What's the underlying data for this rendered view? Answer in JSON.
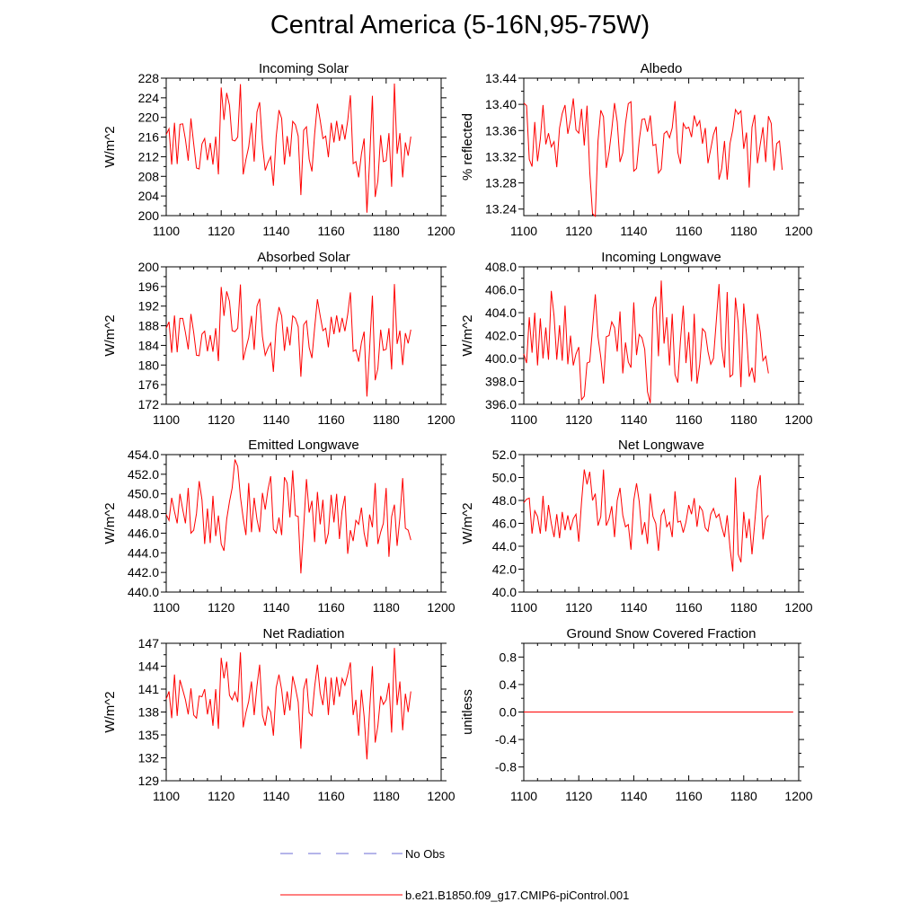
{
  "title": "Central America (5-16N,95-75W)",
  "legend": {
    "no_obs_label": "No Obs",
    "model_label": "b.e21.B1850.f09_g17.CMIP6-piControl.001",
    "no_obs_color": "#6b6bd6",
    "model_color": "#ff0000"
  },
  "chart_data": [
    {
      "type": "line",
      "title": "Incoming Solar",
      "ylabel": "W/m^2",
      "xlim": [
        1100,
        1200
      ],
      "ylim": [
        200,
        228
      ],
      "xticks": [
        1100,
        1120,
        1140,
        1160,
        1180,
        1200
      ],
      "yticks": [
        200,
        204,
        208,
        212,
        216,
        220,
        224,
        228
      ],
      "ydecimals": 0,
      "x_start": 1100,
      "values": [
        216.5,
        217.7,
        210.4,
        218.9,
        210.5,
        218.6,
        218.7,
        215.5,
        211.2,
        219.8,
        214.6,
        209.7,
        209.5,
        214.6,
        215.7,
        211.3,
        214.8,
        210.4,
        216.1,
        208.4,
        226.1,
        219.5,
        225.0,
        222.5,
        215.4,
        215.2,
        216.0,
        226.8,
        208.4,
        211.4,
        214.0,
        218.9,
        211.0,
        221.1,
        223.1,
        214.5,
        209.2,
        210.8,
        212.0,
        206.1,
        216.1,
        221.5,
        219.8,
        210.4,
        216.2,
        212.0,
        219.2,
        218.5,
        216.2,
        204.2,
        217.4,
        218.1,
        211.5,
        209.0,
        216.6,
        222.8,
        219.4,
        215.7,
        216.2,
        211.9,
        218.9,
        214.9,
        219.3,
        215.2,
        218.6,
        215.5,
        219.3,
        224.5,
        210.6,
        211.0,
        207.8,
        212.6,
        215.7,
        200.6,
        211.2,
        224.4,
        203.8,
        207.1,
        216.4,
        211.0,
        211.2,
        216.8,
        205.9,
        226.9,
        212.6,
        216.8,
        207.8,
        214.9,
        212.2,
        216.1
      ]
    },
    {
      "type": "line",
      "title": "Albedo",
      "ylabel": "% reflected",
      "xlim": [
        1100,
        1200
      ],
      "ylim": [
        13.23,
        13.44
      ],
      "xticks": [
        1100,
        1120,
        1140,
        1160,
        1180,
        1200
      ],
      "yticks": [
        13.24,
        13.28,
        13.32,
        13.36,
        13.4,
        13.44
      ],
      "ydecimals": 2,
      "x_start": 1100,
      "values": [
        13.402,
        13.398,
        13.316,
        13.305,
        13.373,
        13.313,
        13.347,
        13.399,
        13.339,
        13.356,
        13.335,
        13.343,
        13.304,
        13.364,
        13.386,
        13.399,
        13.355,
        13.376,
        13.409,
        13.361,
        13.356,
        13.393,
        13.337,
        13.398,
        13.297,
        13.233,
        13.229,
        13.344,
        13.391,
        13.381,
        13.303,
        13.327,
        13.361,
        13.402,
        13.373,
        13.312,
        13.326,
        13.371,
        13.401,
        13.404,
        13.298,
        13.302,
        13.345,
        13.377,
        13.378,
        13.358,
        13.383,
        13.337,
        13.339,
        13.295,
        13.301,
        13.355,
        13.359,
        13.349,
        13.364,
        13.405,
        13.327,
        13.309,
        13.371,
        13.363,
        13.365,
        13.35,
        13.383,
        13.367,
        13.375,
        13.34,
        13.364,
        13.31,
        13.332,
        13.354,
        13.366,
        13.285,
        13.302,
        13.344,
        13.285,
        13.34,
        13.361,
        13.392,
        13.385,
        13.39,
        13.332,
        13.357,
        13.273,
        13.365,
        13.384,
        13.31,
        13.339,
        13.365,
        13.312,
        13.382,
        13.371,
        13.299,
        13.34,
        13.344,
        13.3
      ]
    },
    {
      "type": "line",
      "title": "Absorbed Solar",
      "ylabel": "W/m^2",
      "xlim": [
        1100,
        1200
      ],
      "ylim": [
        172,
        200
      ],
      "xticks": [
        1100,
        1120,
        1140,
        1160,
        1180,
        1200
      ],
      "yticks": [
        172,
        176,
        180,
        184,
        188,
        192,
        196,
        200
      ],
      "ydecimals": 0,
      "x_start": 1100,
      "values": [
        187.5,
        188.8,
        182.5,
        190.1,
        182.6,
        189.5,
        189.5,
        186.6,
        183.2,
        190.4,
        186.6,
        182.0,
        181.9,
        186.3,
        186.9,
        182.8,
        186.1,
        182.7,
        187.5,
        180.8,
        195.9,
        190.0,
        195.0,
        193.0,
        187.0,
        186.8,
        187.5,
        196.4,
        181.0,
        183.4,
        185.6,
        190.0,
        183.1,
        192.0,
        193.5,
        185.8,
        182.0,
        183.4,
        184.5,
        178.6,
        188.0,
        191.8,
        190.0,
        182.9,
        187.8,
        184.0,
        190.0,
        189.5,
        187.8,
        177.6,
        188.2,
        189.0,
        183.6,
        181.4,
        187.6,
        193.4,
        190.0,
        187.0,
        187.5,
        183.6,
        189.8,
        186.3,
        190.1,
        186.6,
        189.6,
        186.9,
        190.3,
        194.8,
        182.8,
        183.1,
        180.7,
        184.6,
        186.8,
        173.6,
        183.4,
        194.1,
        176.9,
        179.3,
        187.2,
        183.0,
        183.2,
        187.5,
        179.1,
        196.5,
        184.3,
        187.0,
        180.0,
        186.5,
        184.4,
        187.2
      ]
    },
    {
      "type": "line",
      "title": "Incoming Longwave",
      "ylabel": "W/m^2",
      "xlim": [
        1100,
        1200
      ],
      "ylim": [
        396,
        408
      ],
      "xticks": [
        1100,
        1120,
        1140,
        1160,
        1180,
        1200
      ],
      "yticks": [
        396,
        398,
        400,
        402,
        404,
        406,
        408
      ],
      "ydecimals": 1,
      "x_start": 1100,
      "values": [
        400.4,
        399.6,
        403.6,
        400.5,
        404.0,
        399.4,
        403.5,
        400.0,
        402.7,
        399.9,
        405.9,
        403.7,
        399.9,
        402.9,
        399.8,
        404.6,
        399.5,
        402.0,
        399.4,
        400.4,
        401.0,
        396.4,
        396.7,
        399.6,
        399.7,
        402.6,
        405.6,
        401.9,
        400.1,
        397.8,
        401.9,
        402.0,
        403.2,
        402.7,
        400.6,
        404.1,
        398.7,
        401.4,
        399.7,
        399.2,
        404.9,
        400.3,
        402.1,
        401.8,
        400.8,
        397.1,
        396.1,
        404.4,
        405.4,
        400.2,
        406.8,
        401.3,
        403.6,
        399.4,
        403.9,
        398.6,
        397.9,
        401.6,
        404.6,
        399.6,
        402.3,
        398.0,
        403.9,
        397.8,
        399.5,
        402.6,
        402.3,
        400.6,
        399.5,
        400.0,
        403.2,
        406.5,
        401.0,
        399.2,
        405.8,
        398.4,
        398.6,
        405.3,
        403.1,
        397.5,
        404.8,
        402.1,
        398.4,
        399.2,
        397.9,
        403.9,
        402.3,
        399.8,
        400.2,
        398.7
      ]
    },
    {
      "type": "line",
      "title": "Emitted Longwave",
      "ylabel": "W/m^2",
      "xlim": [
        1100,
        1200
      ],
      "ylim": [
        440,
        454
      ],
      "xticks": [
        1100,
        1120,
        1140,
        1160,
        1180,
        1200
      ],
      "yticks": [
        440,
        442,
        444,
        446,
        448,
        450,
        452,
        454
      ],
      "ydecimals": 1,
      "x_start": 1100,
      "values": [
        447.9,
        447.3,
        449.6,
        448.2,
        447.0,
        450.0,
        448.4,
        447.0,
        450.6,
        446.0,
        446.3,
        448.0,
        451.3,
        449.4,
        444.9,
        448.5,
        445.0,
        449.8,
        445.7,
        447.8,
        444.9,
        444.2,
        447.4,
        449.2,
        450.6,
        453.5,
        452.8,
        449.7,
        447.5,
        445.8,
        451.1,
        446.1,
        449.6,
        447.4,
        446.1,
        450.1,
        448.4,
        450.4,
        451.8,
        446.4,
        446.0,
        447.6,
        445.8,
        451.7,
        451.1,
        447.6,
        452.4,
        447.8,
        447.7,
        441.9,
        446.6,
        451.5,
        448.1,
        449.3,
        445.1,
        450.2,
        446.9,
        449.4,
        444.9,
        446.0,
        449.9,
        447.1,
        450.0,
        445.4,
        448.3,
        449.8,
        443.9,
        446.3,
        445.2,
        447.3,
        446.9,
        448.6,
        446.0,
        444.6,
        447.9,
        446.6,
        451.1,
        444.9,
        446.1,
        447.0,
        450.6,
        443.6,
        447.7,
        448.9,
        444.7,
        447.6,
        451.6,
        446.5,
        446.3,
        445.3
      ]
    },
    {
      "type": "line",
      "title": "Net Longwave",
      "ylabel": "W/m^2",
      "xlim": [
        1100,
        1200
      ],
      "ylim": [
        40,
        52
      ],
      "xticks": [
        1100,
        1120,
        1140,
        1160,
        1180,
        1200
      ],
      "yticks": [
        40,
        42,
        44,
        46,
        48,
        50,
        52
      ],
      "ydecimals": 1,
      "x_start": 1100,
      "values": [
        47.8,
        48.1,
        48.2,
        45.1,
        47.1,
        46.6,
        45.1,
        48.4,
        45.3,
        47.6,
        46.0,
        44.8,
        46.8,
        44.7,
        47.0,
        45.4,
        46.7,
        45.4,
        46.4,
        46.8,
        44.4,
        47.9,
        50.7,
        49.4,
        50.5,
        48.0,
        48.6,
        45.8,
        46.6,
        50.7,
        45.8,
        46.4,
        47.5,
        44.8,
        48.0,
        49.1,
        46.7,
        45.7,
        45.9,
        43.7,
        48.0,
        49.5,
        47.9,
        45.0,
        46.1,
        44.2,
        48.6,
        46.6,
        46.0,
        43.6,
        46.7,
        47.2,
        45.7,
        46.1,
        44.8,
        48.8,
        46.1,
        46.2,
        45.2,
        46.1,
        47.6,
        46.8,
        48.2,
        45.7,
        47.5,
        47.1,
        45.6,
        45.3,
        46.8,
        47.3,
        46.5,
        46.8,
        45.7,
        44.8,
        46.7,
        43.9,
        41.8,
        50.0,
        43.3,
        42.6,
        47.0,
        44.7,
        46.4,
        43.3,
        46.0,
        49.0,
        50.2,
        44.6,
        46.4,
        46.7
      ]
    },
    {
      "type": "line",
      "title": "Net Radiation",
      "ylabel": "W/m^2",
      "xlim": [
        1100,
        1200
      ],
      "ylim": [
        129,
        147
      ],
      "xticks": [
        1100,
        1120,
        1140,
        1160,
        1180,
        1200
      ],
      "yticks": [
        129,
        132,
        135,
        138,
        141,
        144,
        147
      ],
      "ydecimals": 0,
      "x_start": 1100,
      "values": [
        139.7,
        140.7,
        137.2,
        142.9,
        137.5,
        142.2,
        140.9,
        139.6,
        137.7,
        141.1,
        137.6,
        137.2,
        140.1,
        140.0,
        141.0,
        137.7,
        139.7,
        136.2,
        141.0,
        135.8,
        145.1,
        142.4,
        144.6,
        140.2,
        139.6,
        140.6,
        139.3,
        145.8,
        136.0,
        137.9,
        139.4,
        142.0,
        137.6,
        141.4,
        144.2,
        137.6,
        136.2,
        138.7,
        138.0,
        134.9,
        141.2,
        142.9,
        140.9,
        137.6,
        140.7,
        138.2,
        142.7,
        141.2,
        139.3,
        133.2,
        141.0,
        142.4,
        137.9,
        137.5,
        141.3,
        144.2,
        140.5,
        138.9,
        142.6,
        137.6,
        142.5,
        138.9,
        142.6,
        140.0,
        142.4,
        141.5,
        142.9,
        144.5,
        137.6,
        139.6,
        134.9,
        140.9,
        137.4,
        131.8,
        138.3,
        144.0,
        134.0,
        136.2,
        140.1,
        139.0,
        139.6,
        141.8,
        135.3,
        146.4,
        138.9,
        142.0,
        135.6,
        140.4,
        138.0,
        140.7
      ]
    },
    {
      "type": "line",
      "title": "Ground Snow Covered Fraction",
      "ylabel": "unitless",
      "xlim": [
        1100,
        1200
      ],
      "ylim": [
        -1.0,
        1.0
      ],
      "xticks": [
        1100,
        1120,
        1140,
        1160,
        1180,
        1200
      ],
      "yticks": [
        -0.8,
        -0.4,
        0.0,
        0.4,
        0.8
      ],
      "ydecimals": 1,
      "x_start": 1100,
      "values": [
        0,
        0,
        0,
        0,
        0,
        0,
        0,
        0,
        0,
        0,
        0,
        0,
        0,
        0,
        0,
        0,
        0,
        0,
        0,
        0,
        0,
        0,
        0,
        0,
        0,
        0,
        0,
        0,
        0,
        0,
        0,
        0,
        0,
        0,
        0,
        0,
        0,
        0,
        0,
        0,
        0,
        0,
        0,
        0,
        0,
        0,
        0,
        0,
        0,
        0,
        0,
        0,
        0,
        0,
        0,
        0,
        0,
        0,
        0,
        0,
        0,
        0,
        0,
        0,
        0,
        0,
        0,
        0,
        0,
        0,
        0,
        0,
        0,
        0,
        0,
        0,
        0,
        0,
        0,
        0,
        0,
        0,
        0,
        0,
        0,
        0,
        0,
        0,
        0,
        0,
        0,
        0,
        0,
        0,
        0,
        0,
        0,
        0,
        0
      ]
    }
  ]
}
